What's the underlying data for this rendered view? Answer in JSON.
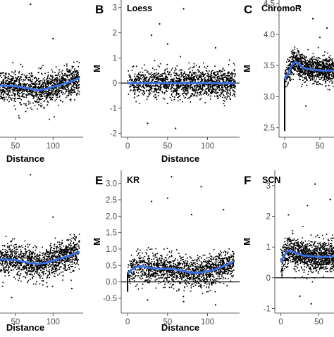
{
  "figure": {
    "colors": {
      "points": "#000000",
      "smooth": "#3a6fe0",
      "hline": "#000000",
      "axis": "#333333",
      "background": "#ffffff"
    }
  },
  "chart_data": [
    {
      "panel": "A",
      "letter": "",
      "label": "",
      "type": "scatter",
      "xlabel": "Distance",
      "ylabel": "",
      "xlim": [
        -8,
        140
      ],
      "ylim": [
        -2.4,
        4.0
      ],
      "xticks": [
        50,
        100
      ],
      "yticks": [],
      "hline": null,
      "spike": null,
      "smooth": {
        "x": [
          0,
          10,
          20,
          30,
          40,
          50,
          60,
          70,
          80,
          90,
          100,
          110,
          120,
          135
        ],
        "y": [
          0.3,
          0.15,
          0.05,
          0.0,
          0.0,
          -0.02,
          -0.08,
          -0.15,
          -0.2,
          -0.15,
          -0.05,
          0.05,
          0.15,
          0.35
        ]
      },
      "outliers": [
        [
          70,
          3.8
        ],
        [
          28,
          -1.8
        ],
        [
          12,
          2.5
        ],
        [
          100,
          2.2
        ],
        [
          55,
          -1.5
        ]
      ]
    },
    {
      "panel": "B",
      "letter": "B",
      "label": "Loess",
      "type": "scatter",
      "xlabel": "Distance",
      "ylabel": "M",
      "xlim": [
        -8,
        140
      ],
      "ylim": [
        -2.15,
        3.3
      ],
      "xticks": [
        0,
        50,
        100
      ],
      "yticks": [
        -2,
        -1,
        0,
        1,
        2,
        3
      ],
      "hline": 0,
      "spike": null,
      "smooth": {
        "x": [
          0,
          135
        ],
        "y": [
          0,
          0
        ]
      },
      "outliers": [
        [
          70,
          2.95
        ],
        [
          30,
          1.9
        ],
        [
          50,
          1.55
        ],
        [
          110,
          1.4
        ],
        [
          25,
          -1.6
        ],
        [
          60,
          -1.8
        ],
        [
          40,
          2.35
        ]
      ]
    },
    {
      "panel": "C",
      "letter": "C",
      "label": "ChromoR",
      "type": "scatter",
      "xlabel": "",
      "ylabel": "M",
      "xlim": [
        -8,
        70
      ],
      "ylim": [
        2.35,
        4.55
      ],
      "xticks": [
        0,
        50
      ],
      "yticks": [
        2.5,
        3.0,
        3.5,
        4.0,
        4.5
      ],
      "hline": null,
      "spike": {
        "x": 0,
        "from": 2.45,
        "to": 3.3
      },
      "smooth": {
        "x": [
          0,
          5,
          10,
          15,
          20,
          25,
          30,
          35,
          40,
          45,
          50,
          55,
          60,
          70
        ],
        "y": [
          3.28,
          3.38,
          3.5,
          3.56,
          3.53,
          3.47,
          3.45,
          3.44,
          3.43,
          3.43,
          3.42,
          3.42,
          3.42,
          3.42
        ]
      },
      "outliers": [
        [
          40,
          4.25
        ],
        [
          20,
          4.45
        ],
        [
          60,
          4.1
        ],
        [
          50,
          3.95
        ],
        [
          30,
          2.85
        ]
      ]
    },
    {
      "panel": "D",
      "letter": "",
      "label": "",
      "type": "scatter",
      "xlabel": "Distance",
      "ylabel": "",
      "xlim": [
        -8,
        140
      ],
      "ylim": [
        -2.4,
        4.0
      ],
      "xticks": [
        50,
        100
      ],
      "yticks": [],
      "hline": null,
      "spike": null,
      "smooth": {
        "x": [
          0,
          10,
          20,
          30,
          40,
          50,
          60,
          70,
          80,
          90,
          100,
          110,
          120,
          135
        ],
        "y": [
          0.25,
          0.12,
          0.05,
          0.0,
          0.0,
          -0.02,
          -0.1,
          -0.15,
          -0.2,
          -0.15,
          -0.05,
          0.05,
          0.15,
          0.35
        ]
      },
      "outliers": [
        [
          70,
          3.8
        ],
        [
          15,
          2.2
        ],
        [
          100,
          1.9
        ],
        [
          45,
          -1.7
        ],
        [
          125,
          -1.3
        ]
      ]
    },
    {
      "panel": "E",
      "letter": "E",
      "label": "KR",
      "type": "scatter",
      "xlabel": "Distance",
      "ylabel": "M",
      "xlim": [
        -8,
        140
      ],
      "ylim": [
        -0.95,
        3.4
      ],
      "xticks": [
        0,
        50,
        100
      ],
      "yticks": [
        -0.5,
        0.0,
        0.5,
        1.0,
        1.5,
        2.0,
        2.5,
        3.0
      ],
      "hline": 0,
      "spike": {
        "x": 0,
        "from": -0.3,
        "to": 0.3
      },
      "smooth": {
        "x": [
          0,
          5,
          10,
          15,
          20,
          30,
          40,
          50,
          60,
          70,
          80,
          90,
          100,
          110,
          120,
          133
        ],
        "y": [
          0.25,
          0.37,
          0.45,
          0.48,
          0.47,
          0.42,
          0.4,
          0.4,
          0.38,
          0.33,
          0.28,
          0.28,
          0.32,
          0.38,
          0.48,
          0.62
        ]
      },
      "outliers": [
        [
          55,
          3.2
        ],
        [
          92,
          2.9
        ],
        [
          50,
          2.55
        ],
        [
          80,
          2.05
        ],
        [
          30,
          2.45
        ],
        [
          70,
          -0.6
        ],
        [
          25,
          -0.55
        ],
        [
          110,
          -0.7
        ],
        [
          120,
          2.2
        ]
      ]
    },
    {
      "panel": "F",
      "letter": "F",
      "label": "SCN",
      "type": "scatter",
      "xlabel": "",
      "ylabel": "M",
      "xlim": [
        -8,
        70
      ],
      "ylim": [
        -1.15,
        3.5
      ],
      "xticks": [
        0,
        50
      ],
      "yticks": [
        -1,
        0,
        1,
        2,
        3
      ],
      "hline": 0,
      "spike": null,
      "smooth": {
        "x": [
          0,
          3,
          6,
          10,
          15,
          20,
          25,
          30,
          40,
          50,
          60,
          70
        ],
        "y": [
          0.5,
          0.65,
          0.78,
          0.88,
          0.86,
          0.8,
          0.76,
          0.72,
          0.7,
          0.68,
          0.68,
          0.7
        ]
      },
      "outliers": [
        [
          45,
          3.05
        ],
        [
          65,
          2.55
        ],
        [
          10,
          2.05
        ],
        [
          35,
          2.35
        ],
        [
          40,
          -0.85
        ],
        [
          25,
          -0.6
        ]
      ]
    }
  ]
}
